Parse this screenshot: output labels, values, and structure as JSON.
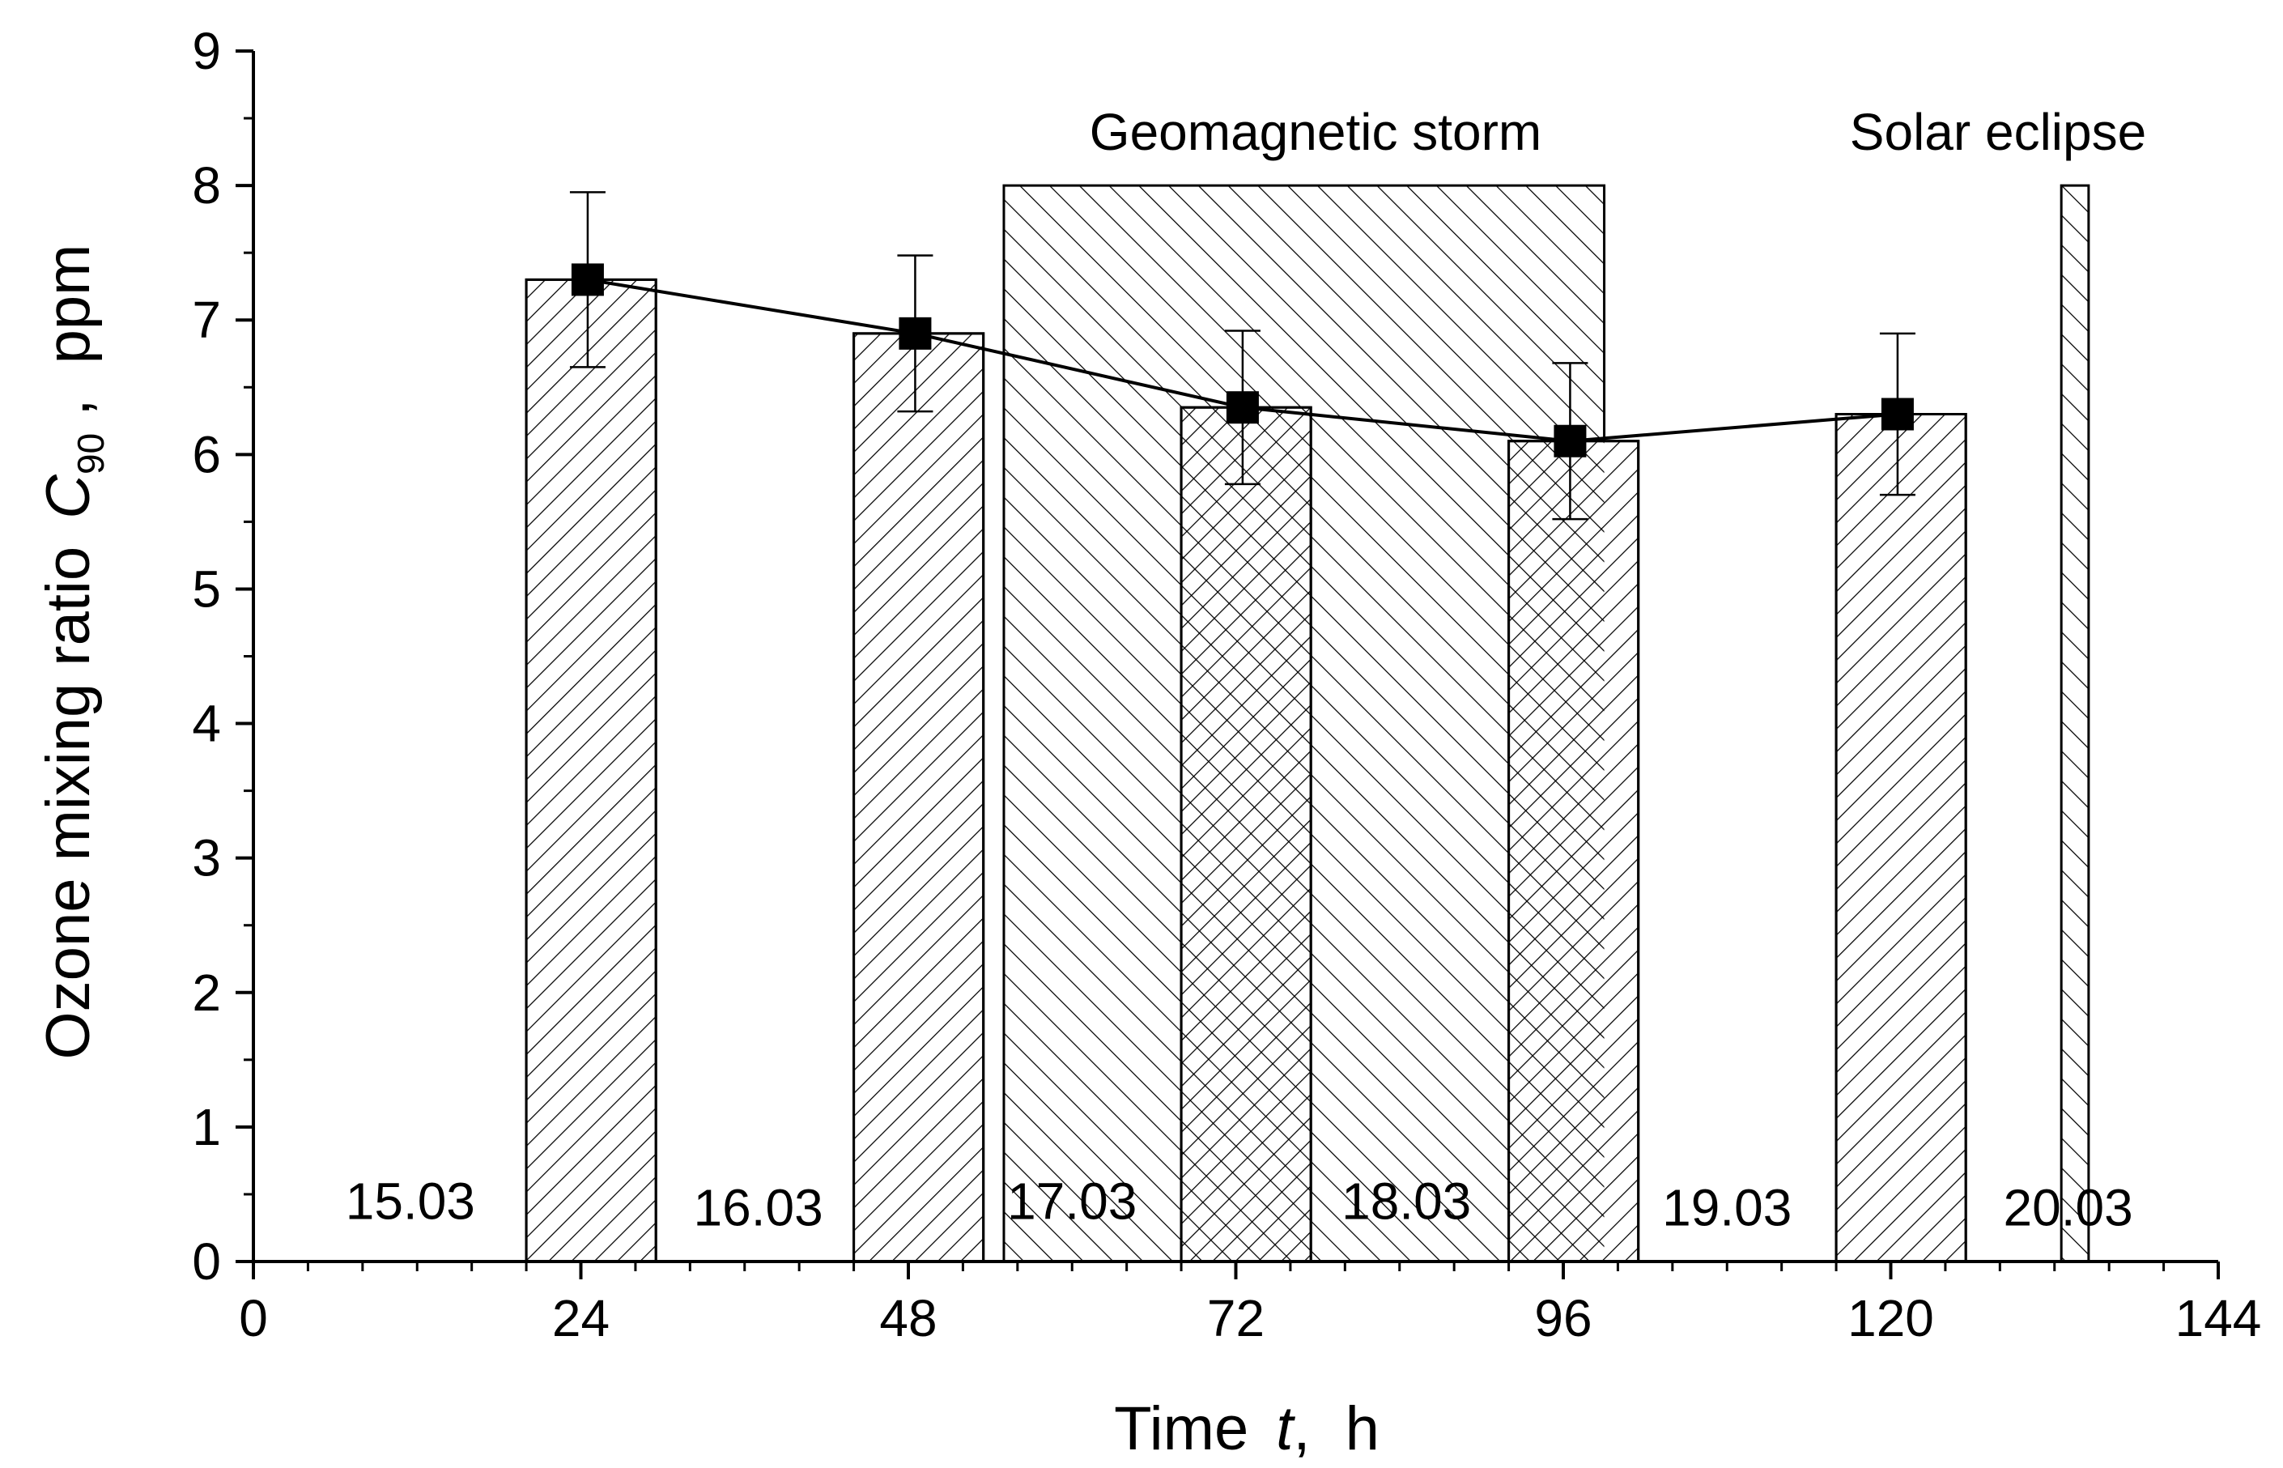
{
  "chart_data": {
    "type": "bar",
    "xlim": [
      0,
      144
    ],
    "ylim": [
      0,
      9
    ],
    "x_ticks": [
      "0",
      "24",
      "48",
      "72",
      "96",
      "120",
      "144"
    ],
    "y_ticks": [
      "0",
      "1",
      "2",
      "3",
      "4",
      "5",
      "6",
      "7",
      "8",
      "9"
    ],
    "xlabel": {
      "main": "Time",
      "var": "t",
      "unit": "h"
    },
    "ylabel": {
      "main": "Ozone mixing ratio",
      "var": "C",
      "sub": "90",
      "unit": "ppm"
    },
    "events": [
      {
        "name": "Geomagnetic storm",
        "x_start": 55.0,
        "x_end": 99.0,
        "height": 8
      },
      {
        "name": "Solar eclipse",
        "x_start": 132.5,
        "x_end": 134.5,
        "height": 8
      }
    ],
    "bars": [
      {
        "x_start": 20.0,
        "x_end": 29.5,
        "value": 7.3
      },
      {
        "x_start": 44.0,
        "x_end": 53.5,
        "value": 6.9
      },
      {
        "x_start": 68.0,
        "x_end": 77.5,
        "value": 6.35
      },
      {
        "x_start": 92.0,
        "x_end": 101.5,
        "value": 6.1
      },
      {
        "x_start": 116.0,
        "x_end": 125.5,
        "value": 6.3
      }
    ],
    "series": [
      {
        "name": "C90",
        "x": [
          24.5,
          48.5,
          72.5,
          96.5,
          120.5
        ],
        "y": [
          7.3,
          6.9,
          6.35,
          6.1,
          6.3
        ],
        "err": [
          0.65,
          0.58,
          0.57,
          0.58,
          0.6
        ]
      }
    ],
    "day_labels": [
      {
        "label": "15.03",
        "x": 11.5,
        "y": 0.45
      },
      {
        "label": "16.03",
        "x": 37.0,
        "y": 0.4
      },
      {
        "label": "17.03",
        "x": 60.0,
        "y": 0.45
      },
      {
        "label": "18.03",
        "x": 84.5,
        "y": 0.45
      },
      {
        "label": "19.03",
        "x": 108.0,
        "y": 0.4
      },
      {
        "label": "20.03",
        "x": 133.0,
        "y": 0.4
      }
    ]
  }
}
